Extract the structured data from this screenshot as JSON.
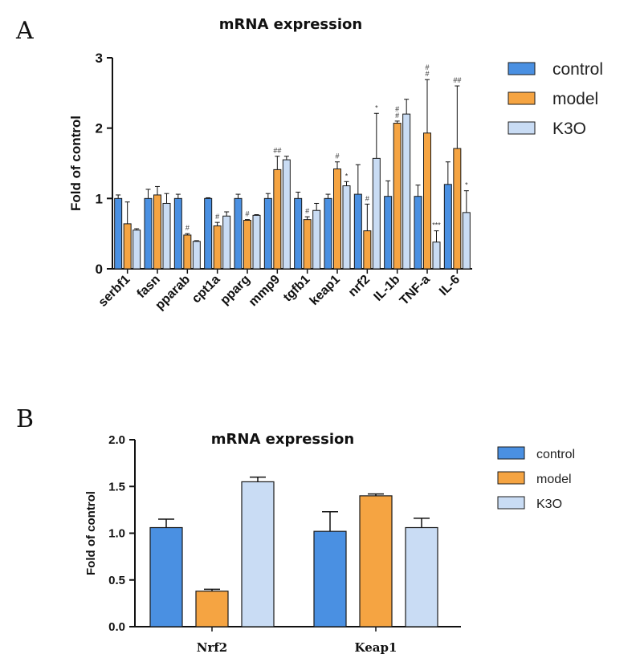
{
  "colors": {
    "control": "#4a90e2",
    "model": "#f5a442",
    "K3O": "#c9dcf4",
    "axis": "#111111"
  },
  "chart_data": [
    {
      "panel": "A",
      "type": "bar",
      "title": "mRNA expression",
      "ylabel": "Fold of control",
      "xlabel": "",
      "ylim": [
        0,
        3
      ],
      "yticks": [
        "0",
        "1",
        "2",
        "3"
      ],
      "categories": [
        "serbf1",
        "fasn",
        "pparab",
        "cpt1a",
        "pparg",
        "mmp9",
        "tgfb1",
        "keap1",
        "nrf2",
        "IL-1b",
        "TNF-a",
        "IL-6"
      ],
      "series": [
        {
          "name": "control",
          "values": [
            1.0,
            1.0,
            1.0,
            1.0,
            1.0,
            1.0,
            1.0,
            1.0,
            1.06,
            1.03,
            1.03,
            1.2
          ],
          "errors": [
            0.05,
            0.13,
            0.06,
            0.01,
            0.06,
            0.07,
            0.09,
            0.06,
            0.42,
            0.22,
            0.16,
            0.32
          ]
        },
        {
          "name": "model",
          "values": [
            0.64,
            1.05,
            0.48,
            0.61,
            0.69,
            1.41,
            0.7,
            1.42,
            0.54,
            2.07,
            1.93,
            1.71
          ],
          "errors": [
            0.31,
            0.12,
            0.02,
            0.05,
            0.01,
            0.19,
            0.04,
            0.1,
            0.38,
            0.03,
            0.76,
            0.89
          ]
        },
        {
          "name": "K3O",
          "values": [
            0.55,
            0.93,
            0.39,
            0.75,
            0.76,
            1.55,
            0.83,
            1.18,
            1.57,
            2.2,
            0.38,
            0.8
          ],
          "errors": [
            0.02,
            0.14,
            0.01,
            0.06,
            0.01,
            0.05,
            0.1,
            0.06,
            0.64,
            0.21,
            0.16,
            0.31
          ]
        }
      ],
      "annotations": [
        {
          "category": "pparab",
          "series": "model",
          "text": "#"
        },
        {
          "category": "cpt1a",
          "series": "model",
          "text": "#"
        },
        {
          "category": "pparg",
          "series": "model",
          "text": "#"
        },
        {
          "category": "mmp9",
          "series": "model",
          "text": "##"
        },
        {
          "category": "tgfb1",
          "series": "model",
          "text": "#"
        },
        {
          "category": "keap1",
          "series": "model",
          "text": "#"
        },
        {
          "category": "keap1",
          "series": "K3O",
          "text": "*"
        },
        {
          "category": "nrf2",
          "series": "model",
          "text": "#"
        },
        {
          "category": "nrf2",
          "series": "K3O",
          "text": "*"
        },
        {
          "category": "IL-1b",
          "series": "model",
          "text": "#"
        },
        {
          "category": "IL-1b",
          "series": "model",
          "text": "#"
        },
        {
          "category": "TNF-a",
          "series": "model",
          "text": "#"
        },
        {
          "category": "TNF-a",
          "series": "model",
          "text": "#"
        },
        {
          "category": "TNF-a",
          "series": "K3O",
          "text": "***"
        },
        {
          "category": "IL-6",
          "series": "model",
          "text": "##"
        },
        {
          "category": "IL-6",
          "series": "K3O",
          "text": "*"
        }
      ],
      "legend": [
        "control",
        "model",
        "K3O"
      ],
      "legend_position": "right"
    },
    {
      "panel": "B",
      "type": "bar",
      "title": "mRNA expression",
      "ylabel": "Fold of control",
      "xlabel": "",
      "ylim": [
        0,
        2
      ],
      "yticks": [
        "0.0",
        "0.5",
        "1.0",
        "1.5",
        "2.0"
      ],
      "categories": [
        "Nrf2",
        "Keap1"
      ],
      "series": [
        {
          "name": "control",
          "values": [
            1.06,
            1.02
          ],
          "errors": [
            0.09,
            0.21
          ]
        },
        {
          "name": "model",
          "values": [
            0.38,
            1.4
          ],
          "errors": [
            0.02,
            0.02
          ]
        },
        {
          "name": "K3O",
          "values": [
            1.55,
            1.06
          ],
          "errors": [
            0.05,
            0.1
          ]
        }
      ],
      "legend": [
        "control",
        "model",
        "K3O"
      ],
      "legend_position": "right"
    }
  ]
}
